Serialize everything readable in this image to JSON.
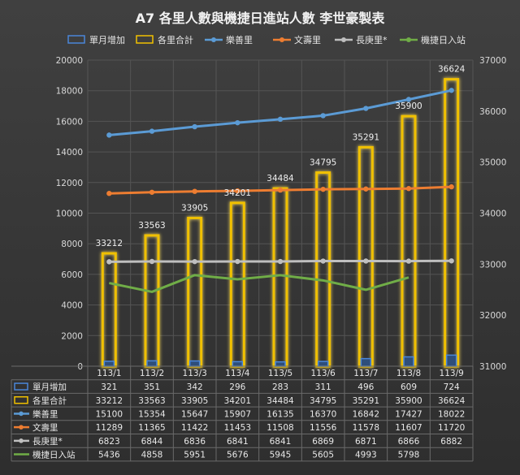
{
  "title": "A7 各里人數與機捷日進站人數  李世豪製表",
  "chart_data": {
    "type": "bar",
    "categories": [
      "113/1",
      "113/2",
      "113/3",
      "113/4",
      "113/5",
      "113/6",
      "113/7",
      "113/8",
      "113/9"
    ],
    "y_left": {
      "min": 0,
      "max": 20000,
      "step": 2000,
      "ticks": [
        "0",
        "2000",
        "4000",
        "6000",
        "8000",
        "10000",
        "12000",
        "14000",
        "16000",
        "18000",
        "20000"
      ]
    },
    "y_right": {
      "min": 31000,
      "max": 37000,
      "step": 1000,
      "ticks": [
        "31000",
        "32000",
        "33000",
        "34000",
        "35000",
        "36000",
        "37000"
      ]
    },
    "grid": true,
    "legend_position": "top",
    "series": [
      {
        "name": "單月增加",
        "type": "bar",
        "axis": "left",
        "color": "#4a86d8",
        "values": [
          321,
          351,
          342,
          296,
          283,
          311,
          496,
          609,
          724
        ],
        "labels": [
          "321",
          "351",
          "342",
          "296",
          "283",
          "311",
          "496",
          "609",
          "724"
        ]
      },
      {
        "name": "各里合計",
        "type": "bar",
        "axis": "right",
        "color": "#f0c000",
        "values": [
          33212,
          33563,
          33905,
          34201,
          34484,
          34795,
          35291,
          35900,
          36624
        ],
        "labels": [
          "33212",
          "33563",
          "33905",
          "34201",
          "34484",
          "34795",
          "35291",
          "35900",
          "36624"
        ]
      },
      {
        "name": "樂善里",
        "type": "line",
        "axis": "left",
        "color": "#5b9bd5",
        "values": [
          15100,
          15354,
          15647,
          15907,
          16135,
          16370,
          16842,
          17427,
          18022
        ],
        "labels": [
          "15100",
          "15354",
          "15647",
          "15907",
          "16135",
          "16370",
          "16842",
          "17427",
          "18022"
        ]
      },
      {
        "name": "文壽里",
        "type": "line",
        "axis": "left",
        "color": "#ed7d31",
        "values": [
          11289,
          11365,
          11422,
          11453,
          11508,
          11556,
          11578,
          11607,
          11720
        ],
        "labels": [
          "11289",
          "11365",
          "11422",
          "11453",
          "11508",
          "11556",
          "11578",
          "11607",
          "11720"
        ]
      },
      {
        "name": "長庚里*",
        "type": "line",
        "axis": "left",
        "color": "#bfbfbf",
        "values": [
          6823,
          6844,
          6836,
          6841,
          6841,
          6869,
          6871,
          6866,
          6882
        ],
        "labels": [
          "6823",
          "6844",
          "6836",
          "6841",
          "6841",
          "6869",
          "6871",
          "6866",
          "6882"
        ]
      },
      {
        "name": "機捷日入站",
        "type": "line",
        "axis": "left",
        "color": "#70ad47",
        "values": [
          5436,
          4858,
          5951,
          5676,
          5945,
          5605,
          4993,
          5798,
          null
        ],
        "labels": [
          "5436",
          "4858",
          "5951",
          "5676",
          "5945",
          "5605",
          "4993",
          "5798",
          ""
        ]
      }
    ]
  }
}
